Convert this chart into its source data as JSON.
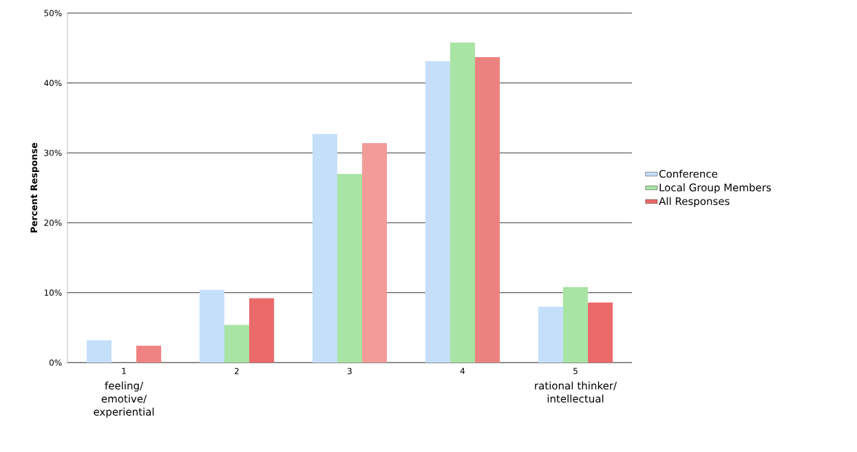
{
  "chart_data": {
    "type": "bar",
    "ylabel": "Percent Response",
    "categories": [
      "1",
      "2",
      "3",
      "4",
      "5"
    ],
    "annotations": [
      "feeling/ emotive/ experiential",
      "rational thinker/ intellectual"
    ],
    "series": [
      {
        "name": "Conference",
        "color": "#c5dffb",
        "values": [
          3.2,
          10.4,
          32.7,
          43.1,
          8.0
        ]
      },
      {
        "name": "Local Group Members",
        "color": "#a8e4a4",
        "values": [
          0,
          5.4,
          27.0,
          45.8,
          10.8
        ]
      },
      {
        "name": "All Responses",
        "color": "#e96a69",
        "colors": [
          "#ef8282",
          "#e96a69",
          "#f19c99",
          "#ec8280",
          "#e96a69"
        ],
        "values": [
          2.4,
          9.2,
          31.4,
          43.7,
          8.6
        ]
      }
    ],
    "ylim": [
      0,
      50
    ],
    "yticks": [
      {
        "value": 0,
        "label": "0%"
      },
      {
        "value": 10,
        "label": "10%"
      },
      {
        "value": 20,
        "label": "20%"
      },
      {
        "value": 30,
        "label": "30%"
      },
      {
        "value": 40,
        "label": "40%"
      },
      {
        "value": 50,
        "label": "50%"
      }
    ],
    "grid": "y",
    "legend": "right"
  }
}
